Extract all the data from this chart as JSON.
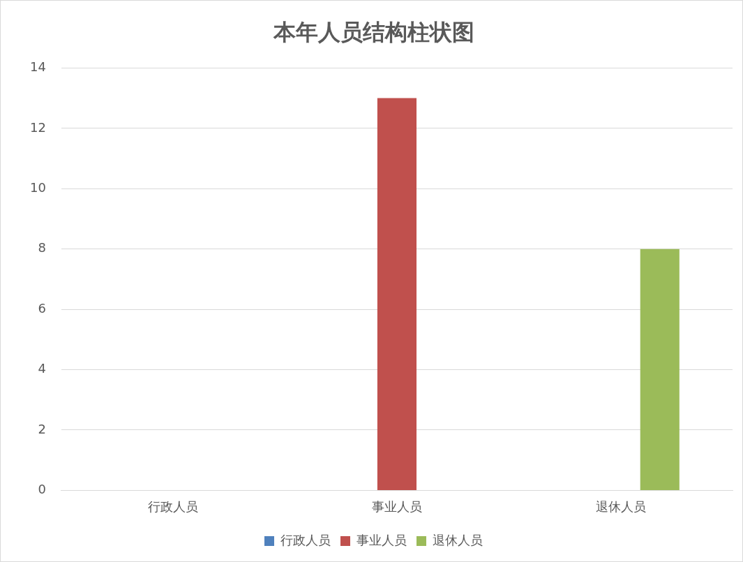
{
  "chart_data": {
    "type": "bar",
    "title": "本年人员结构柱状图",
    "categories": [
      "行政人员",
      "事业人员",
      "退休人员"
    ],
    "series": [
      {
        "name": "行政人员",
        "color": "#4f81bd",
        "values": [
          0,
          null,
          null
        ]
      },
      {
        "name": "事业人员",
        "color": "#c0504d",
        "values": [
          null,
          13,
          null
        ]
      },
      {
        "name": "退休人员",
        "color": "#9bbb59",
        "values": [
          null,
          null,
          8
        ]
      }
    ],
    "ylim": [
      0,
      14
    ],
    "yticks": [
      0,
      2,
      4,
      6,
      8,
      10,
      12,
      14
    ],
    "grid": "y",
    "legend": "bottom"
  }
}
